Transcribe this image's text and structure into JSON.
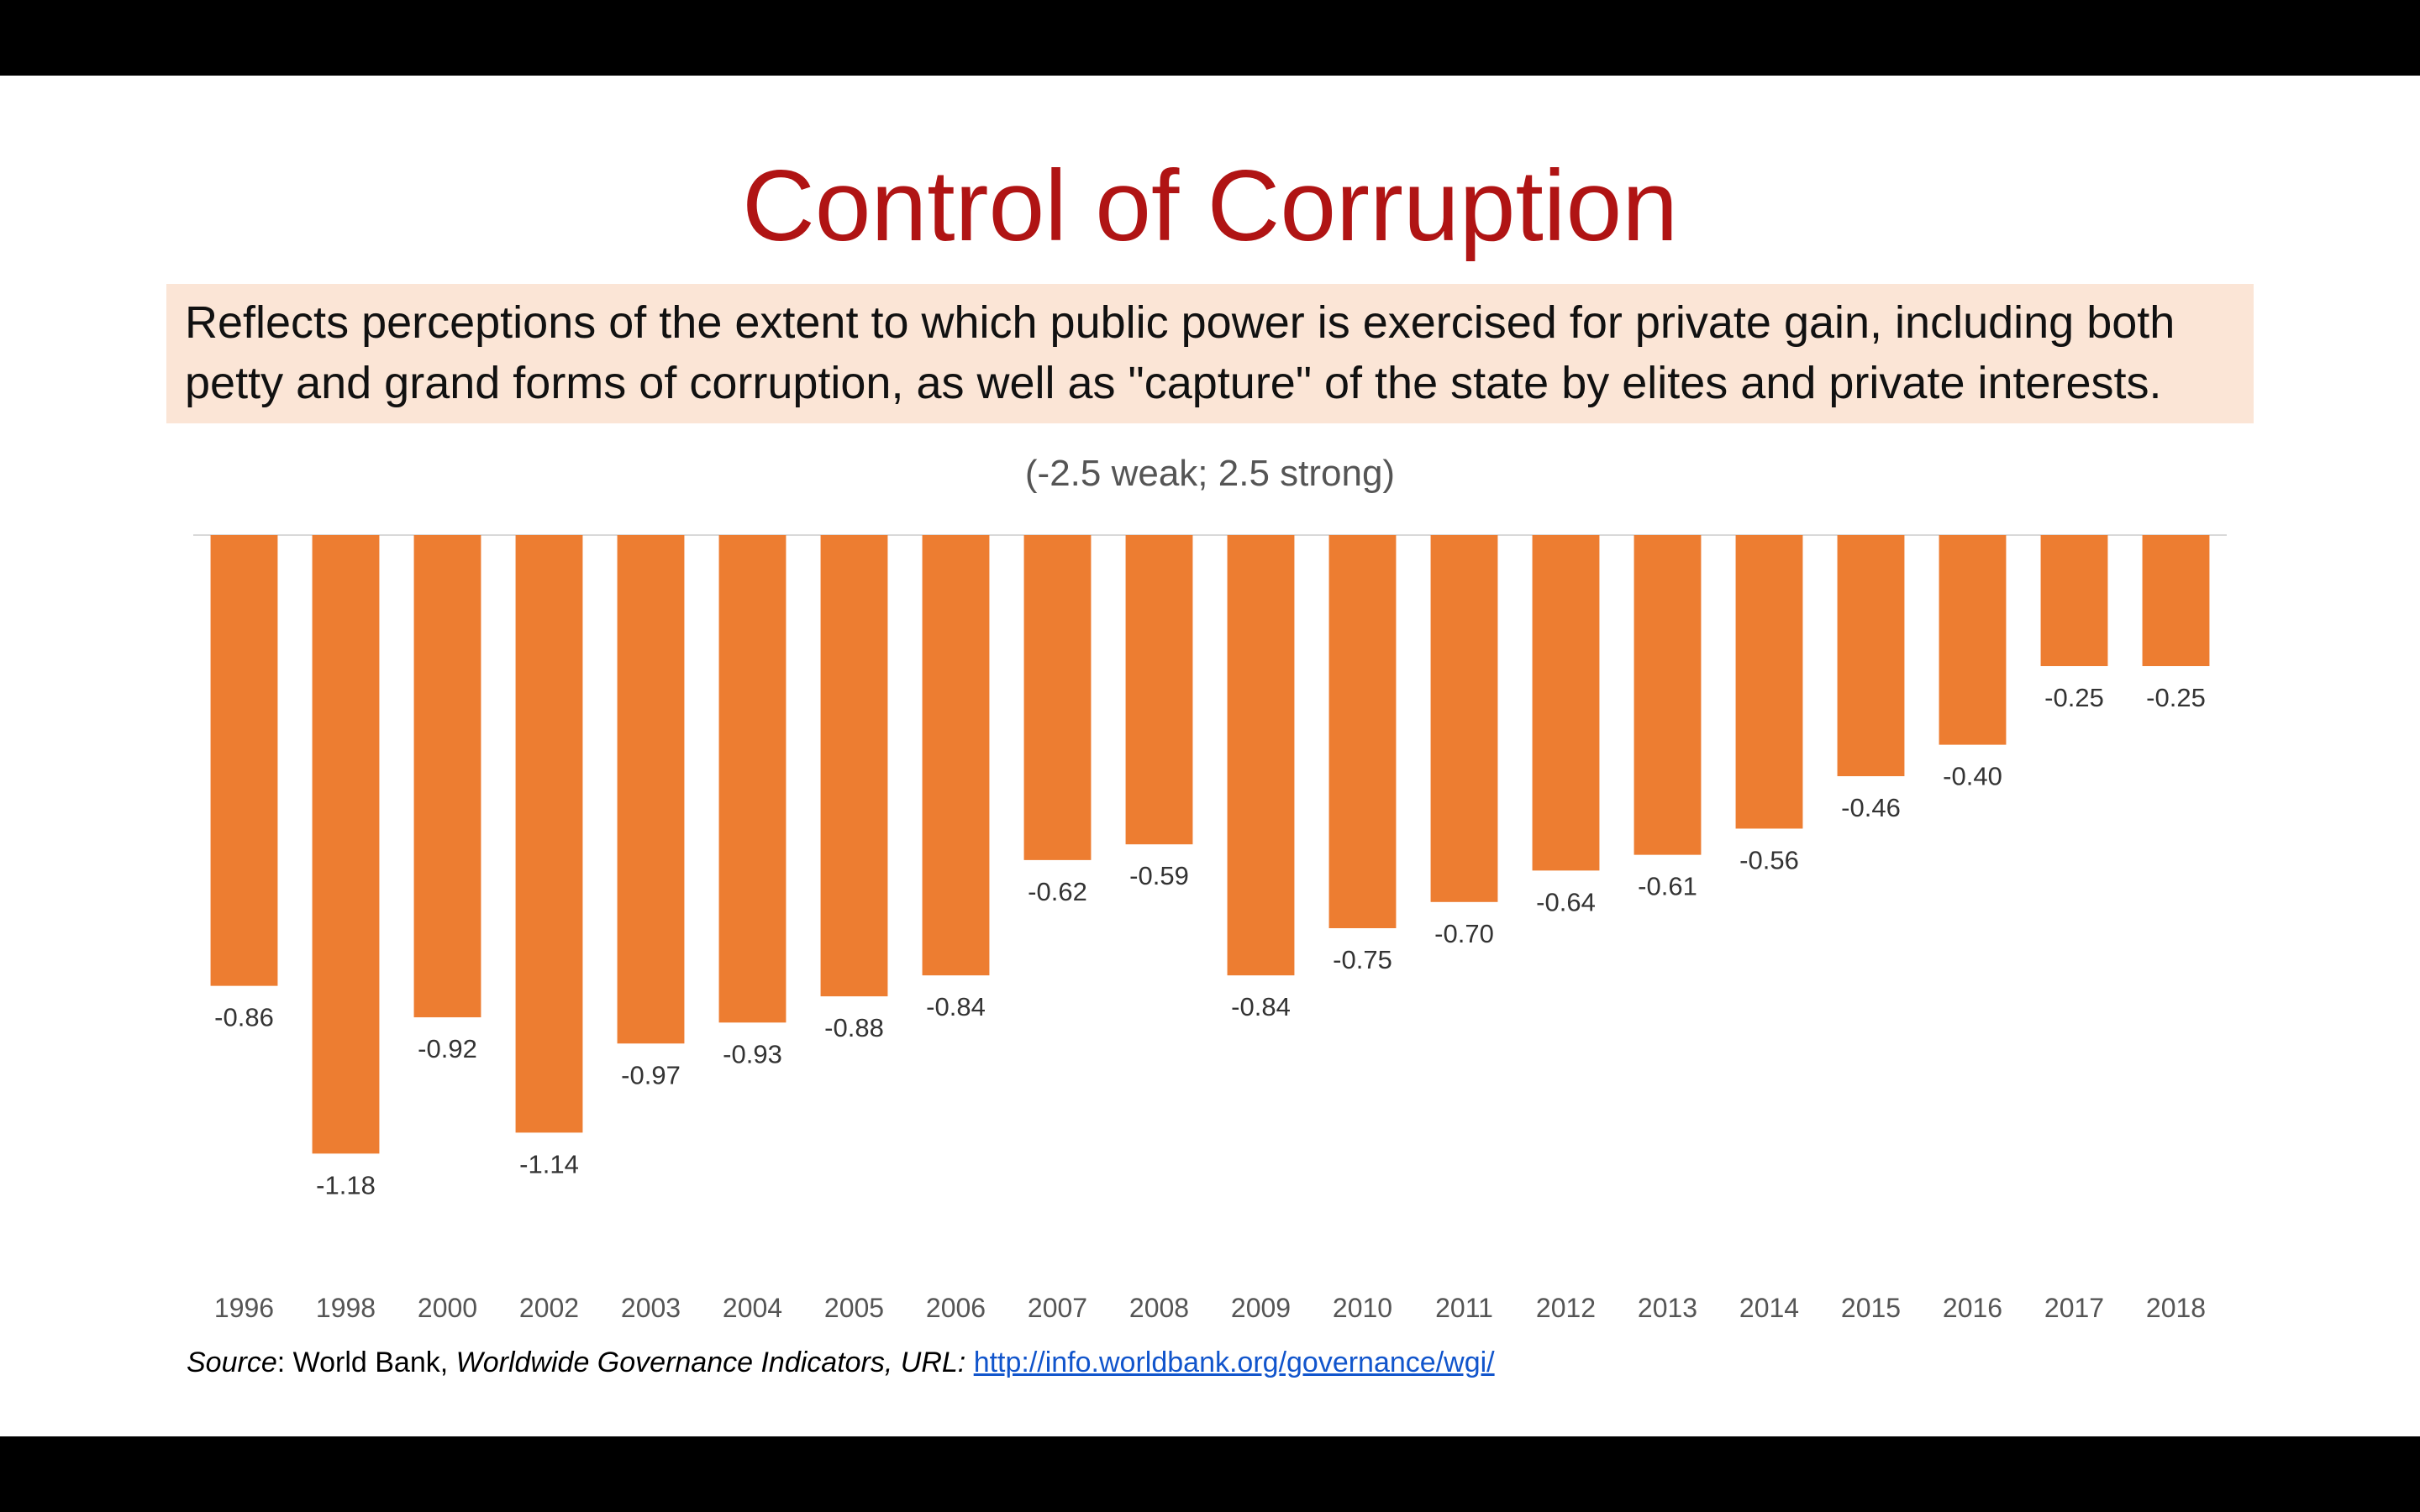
{
  "slide": {
    "title": "Control of Corruption",
    "description_line1": "Reflects perceptions of the extent to which public power is exercised for private gain, including both",
    "description_line2": "petty and grand forms of corruption, as well as \"capture\" of the state by elites and private interests."
  },
  "source": {
    "label": "Source",
    "sep": ": World Bank, ",
    "publication": "Worldwide Governance Indicators, URL: ",
    "url": "http://info.worldbank.org/governance/wgi/"
  },
  "chart_data": {
    "type": "bar",
    "title": "",
    "subtitle": "(-2.5 weak; 2.5 strong)",
    "categories": [
      "1996",
      "1998",
      "2000",
      "2002",
      "2003",
      "2004",
      "2005",
      "2006",
      "2007",
      "2008",
      "2009",
      "2010",
      "2011",
      "2012",
      "2013",
      "2014",
      "2015",
      "2016",
      "2017",
      "2018"
    ],
    "values": [
      -0.86,
      -1.18,
      -0.92,
      -1.14,
      -0.97,
      -0.93,
      -0.88,
      -0.84,
      -0.62,
      -0.59,
      -0.84,
      -0.75,
      -0.7,
      -0.64,
      -0.61,
      -0.56,
      -0.46,
      -0.4,
      -0.25,
      -0.25
    ],
    "labels": [
      "-0.86",
      "-1.18",
      "-0.92",
      "-1.14",
      "-0.97",
      "-0.93",
      "-0.88",
      "-0.84",
      "-0.62",
      "-0.59",
      "-0.84",
      "-0.75",
      "-0.70",
      "-0.64",
      "-0.61",
      "-0.56",
      "-0.46",
      "-0.40",
      "-0.25",
      "-0.25"
    ],
    "xlabel": "",
    "ylabel": "",
    "ylim": [
      -1.25,
      0
    ],
    "bar_color": "#ED7D31",
    "grid": false
  }
}
